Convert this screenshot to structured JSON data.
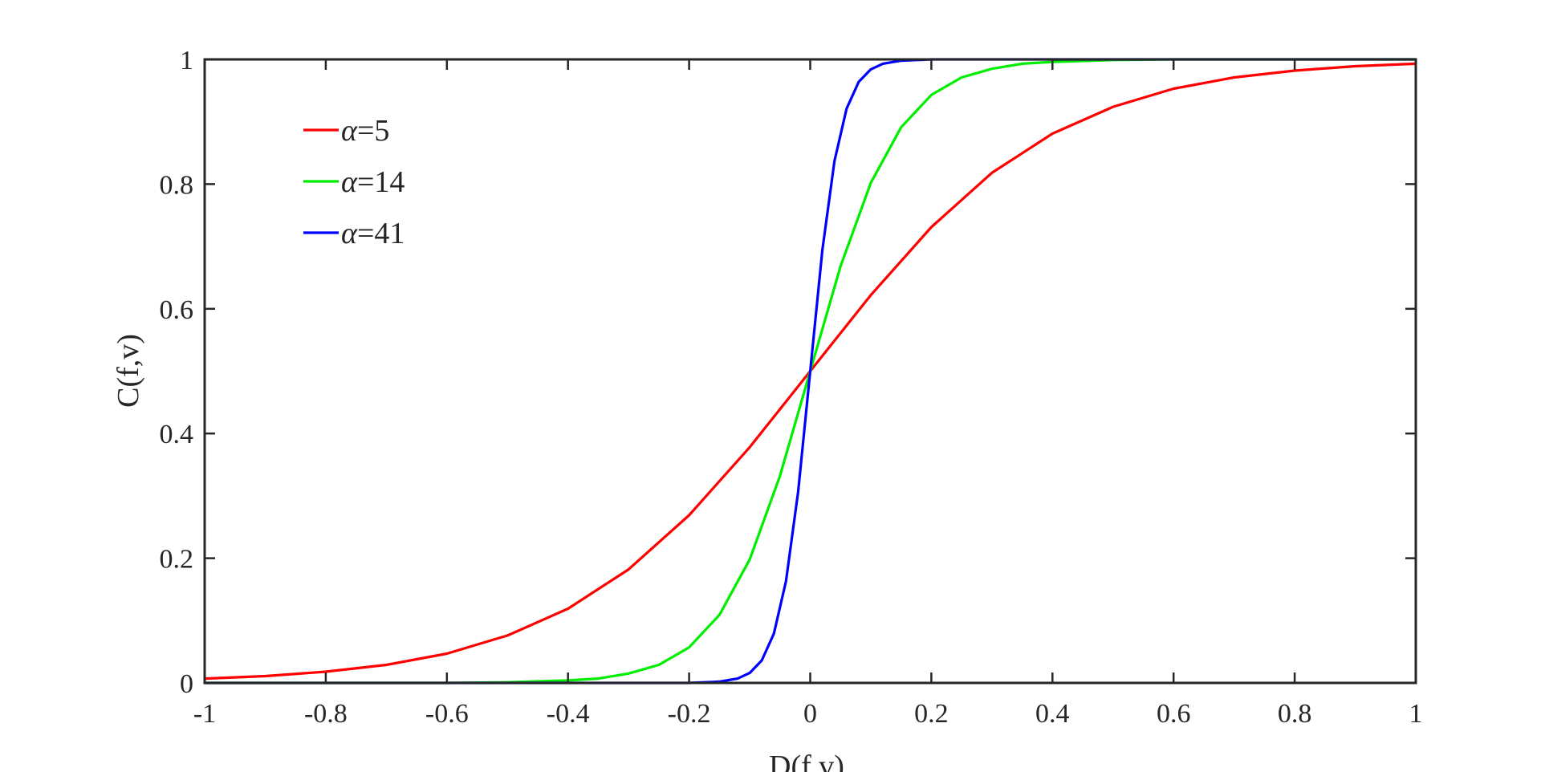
{
  "chart_data": {
    "type": "line",
    "title": "",
    "xlabel": "D(f,v)",
    "ylabel": "C(f,v)",
    "xlim": [
      -1,
      1
    ],
    "ylim": [
      0,
      1
    ],
    "x_ticks": [
      -1,
      -0.8,
      -0.6,
      -0.4,
      -0.2,
      0,
      0.2,
      0.4,
      0.6,
      0.8,
      1
    ],
    "x_tick_labels": [
      "-1",
      "-0.8",
      "-0.6",
      "-0.4",
      "-0.2",
      "0",
      "0.2",
      "0.4",
      "0.6",
      "0.8",
      "1"
    ],
    "y_ticks": [
      0,
      0.2,
      0.4,
      0.6,
      0.8,
      1
    ],
    "y_tick_labels": [
      "0",
      "0.2",
      "0.4",
      "0.6",
      "0.8",
      "1"
    ],
    "grid": false,
    "legend_position": "top-left",
    "series": [
      {
        "name": "α=5",
        "legend_symbol": "α",
        "legend_value": "=5",
        "color": "#ff0000",
        "x": [
          -1,
          -0.9,
          -0.8,
          -0.7,
          -0.6,
          -0.5,
          -0.4,
          -0.3,
          -0.2,
          -0.1,
          0,
          0.1,
          0.2,
          0.3,
          0.4,
          0.5,
          0.6,
          0.7,
          0.8,
          0.9,
          1
        ],
        "y": [
          0.007,
          0.011,
          0.018,
          0.029,
          0.047,
          0.076,
          0.119,
          0.182,
          0.269,
          0.378,
          0.5,
          0.622,
          0.731,
          0.818,
          0.881,
          0.924,
          0.953,
          0.971,
          0.982,
          0.989,
          0.993
        ]
      },
      {
        "name": "α=14",
        "legend_symbol": "α",
        "legend_value": "=14",
        "color": "#00ee00",
        "x": [
          -1,
          -0.6,
          -0.5,
          -0.4,
          -0.35,
          -0.3,
          -0.25,
          -0.2,
          -0.15,
          -0.1,
          -0.05,
          0,
          0.05,
          0.1,
          0.15,
          0.2,
          0.25,
          0.3,
          0.35,
          0.4,
          0.5,
          0.6,
          1
        ],
        "y": [
          0.0,
          0.0,
          0.001,
          0.004,
          0.007,
          0.015,
          0.029,
          0.057,
          0.109,
          0.198,
          0.332,
          0.5,
          0.668,
          0.802,
          0.891,
          0.943,
          0.971,
          0.985,
          0.993,
          0.996,
          0.999,
          1.0,
          1.0
        ]
      },
      {
        "name": "α=41",
        "legend_symbol": "α",
        "legend_value": "=41",
        "color": "#0000ff",
        "x": [
          -1,
          -0.2,
          -0.15,
          -0.12,
          -0.1,
          -0.08,
          -0.06,
          -0.04,
          -0.02,
          0,
          0.02,
          0.04,
          0.06,
          0.08,
          0.1,
          0.12,
          0.15,
          0.2,
          1
        ],
        "y": [
          0.0,
          0.0,
          0.002,
          0.007,
          0.016,
          0.036,
          0.079,
          0.163,
          0.306,
          0.5,
          0.694,
          0.837,
          0.921,
          0.964,
          0.984,
          0.993,
          0.998,
          1.0,
          1.0
        ]
      }
    ]
  }
}
